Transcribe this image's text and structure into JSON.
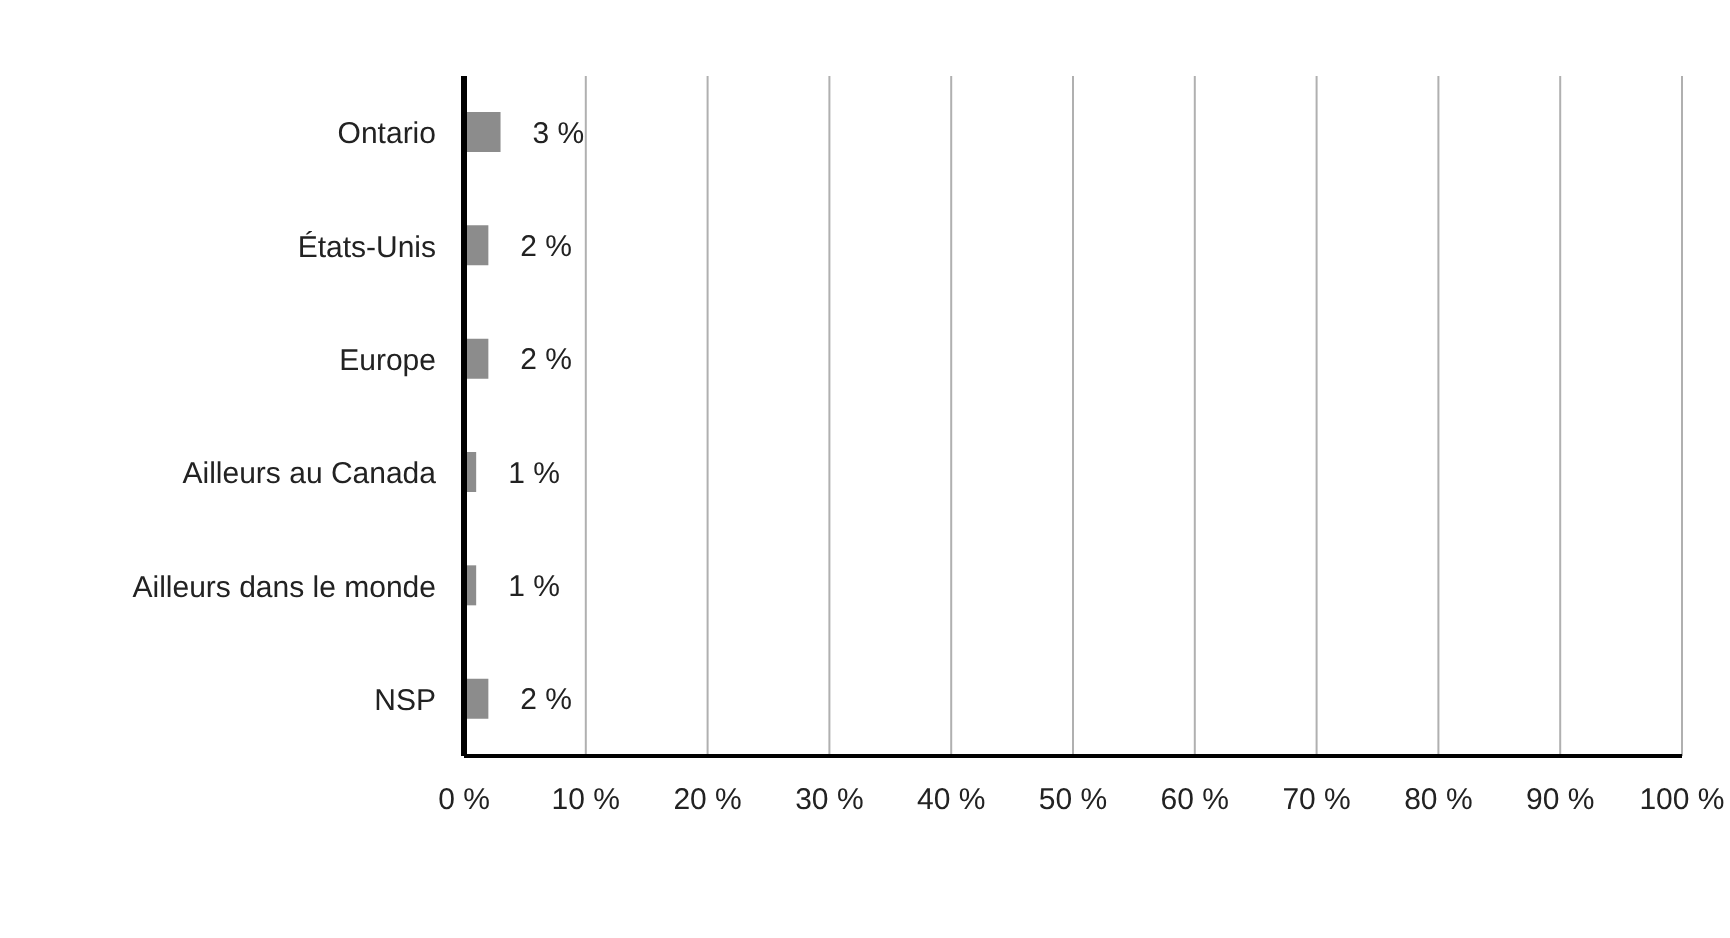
{
  "chart_data": {
    "type": "bar",
    "orientation": "horizontal",
    "categories": [
      "Ontario",
      "États-Unis",
      "Europe",
      "Ailleurs au Canada",
      "Ailleurs dans le monde",
      "NSP"
    ],
    "values": [
      3,
      2,
      2,
      1,
      1,
      2
    ],
    "value_labels": [
      "3 %",
      "2 %",
      "2 %",
      "1 %",
      "1 %",
      "2 %"
    ],
    "color": "#8c8c8c",
    "xlim": [
      0,
      100
    ],
    "xticks": [
      {
        "value": 0,
        "label": "0 %"
      },
      {
        "value": 10,
        "label": "10 %"
      },
      {
        "value": 20,
        "label": "20 %"
      },
      {
        "value": 30,
        "label": "30 %"
      },
      {
        "value": 40,
        "label": "40 %"
      },
      {
        "value": 50,
        "label": "50 %"
      },
      {
        "value": 60,
        "label": "60 %"
      },
      {
        "value": 70,
        "label": "70 %"
      },
      {
        "value": 80,
        "label": "80 %"
      },
      {
        "value": 90,
        "label": "90 %"
      },
      {
        "value": 100,
        "label": "100 %"
      }
    ],
    "grid": "x"
  }
}
